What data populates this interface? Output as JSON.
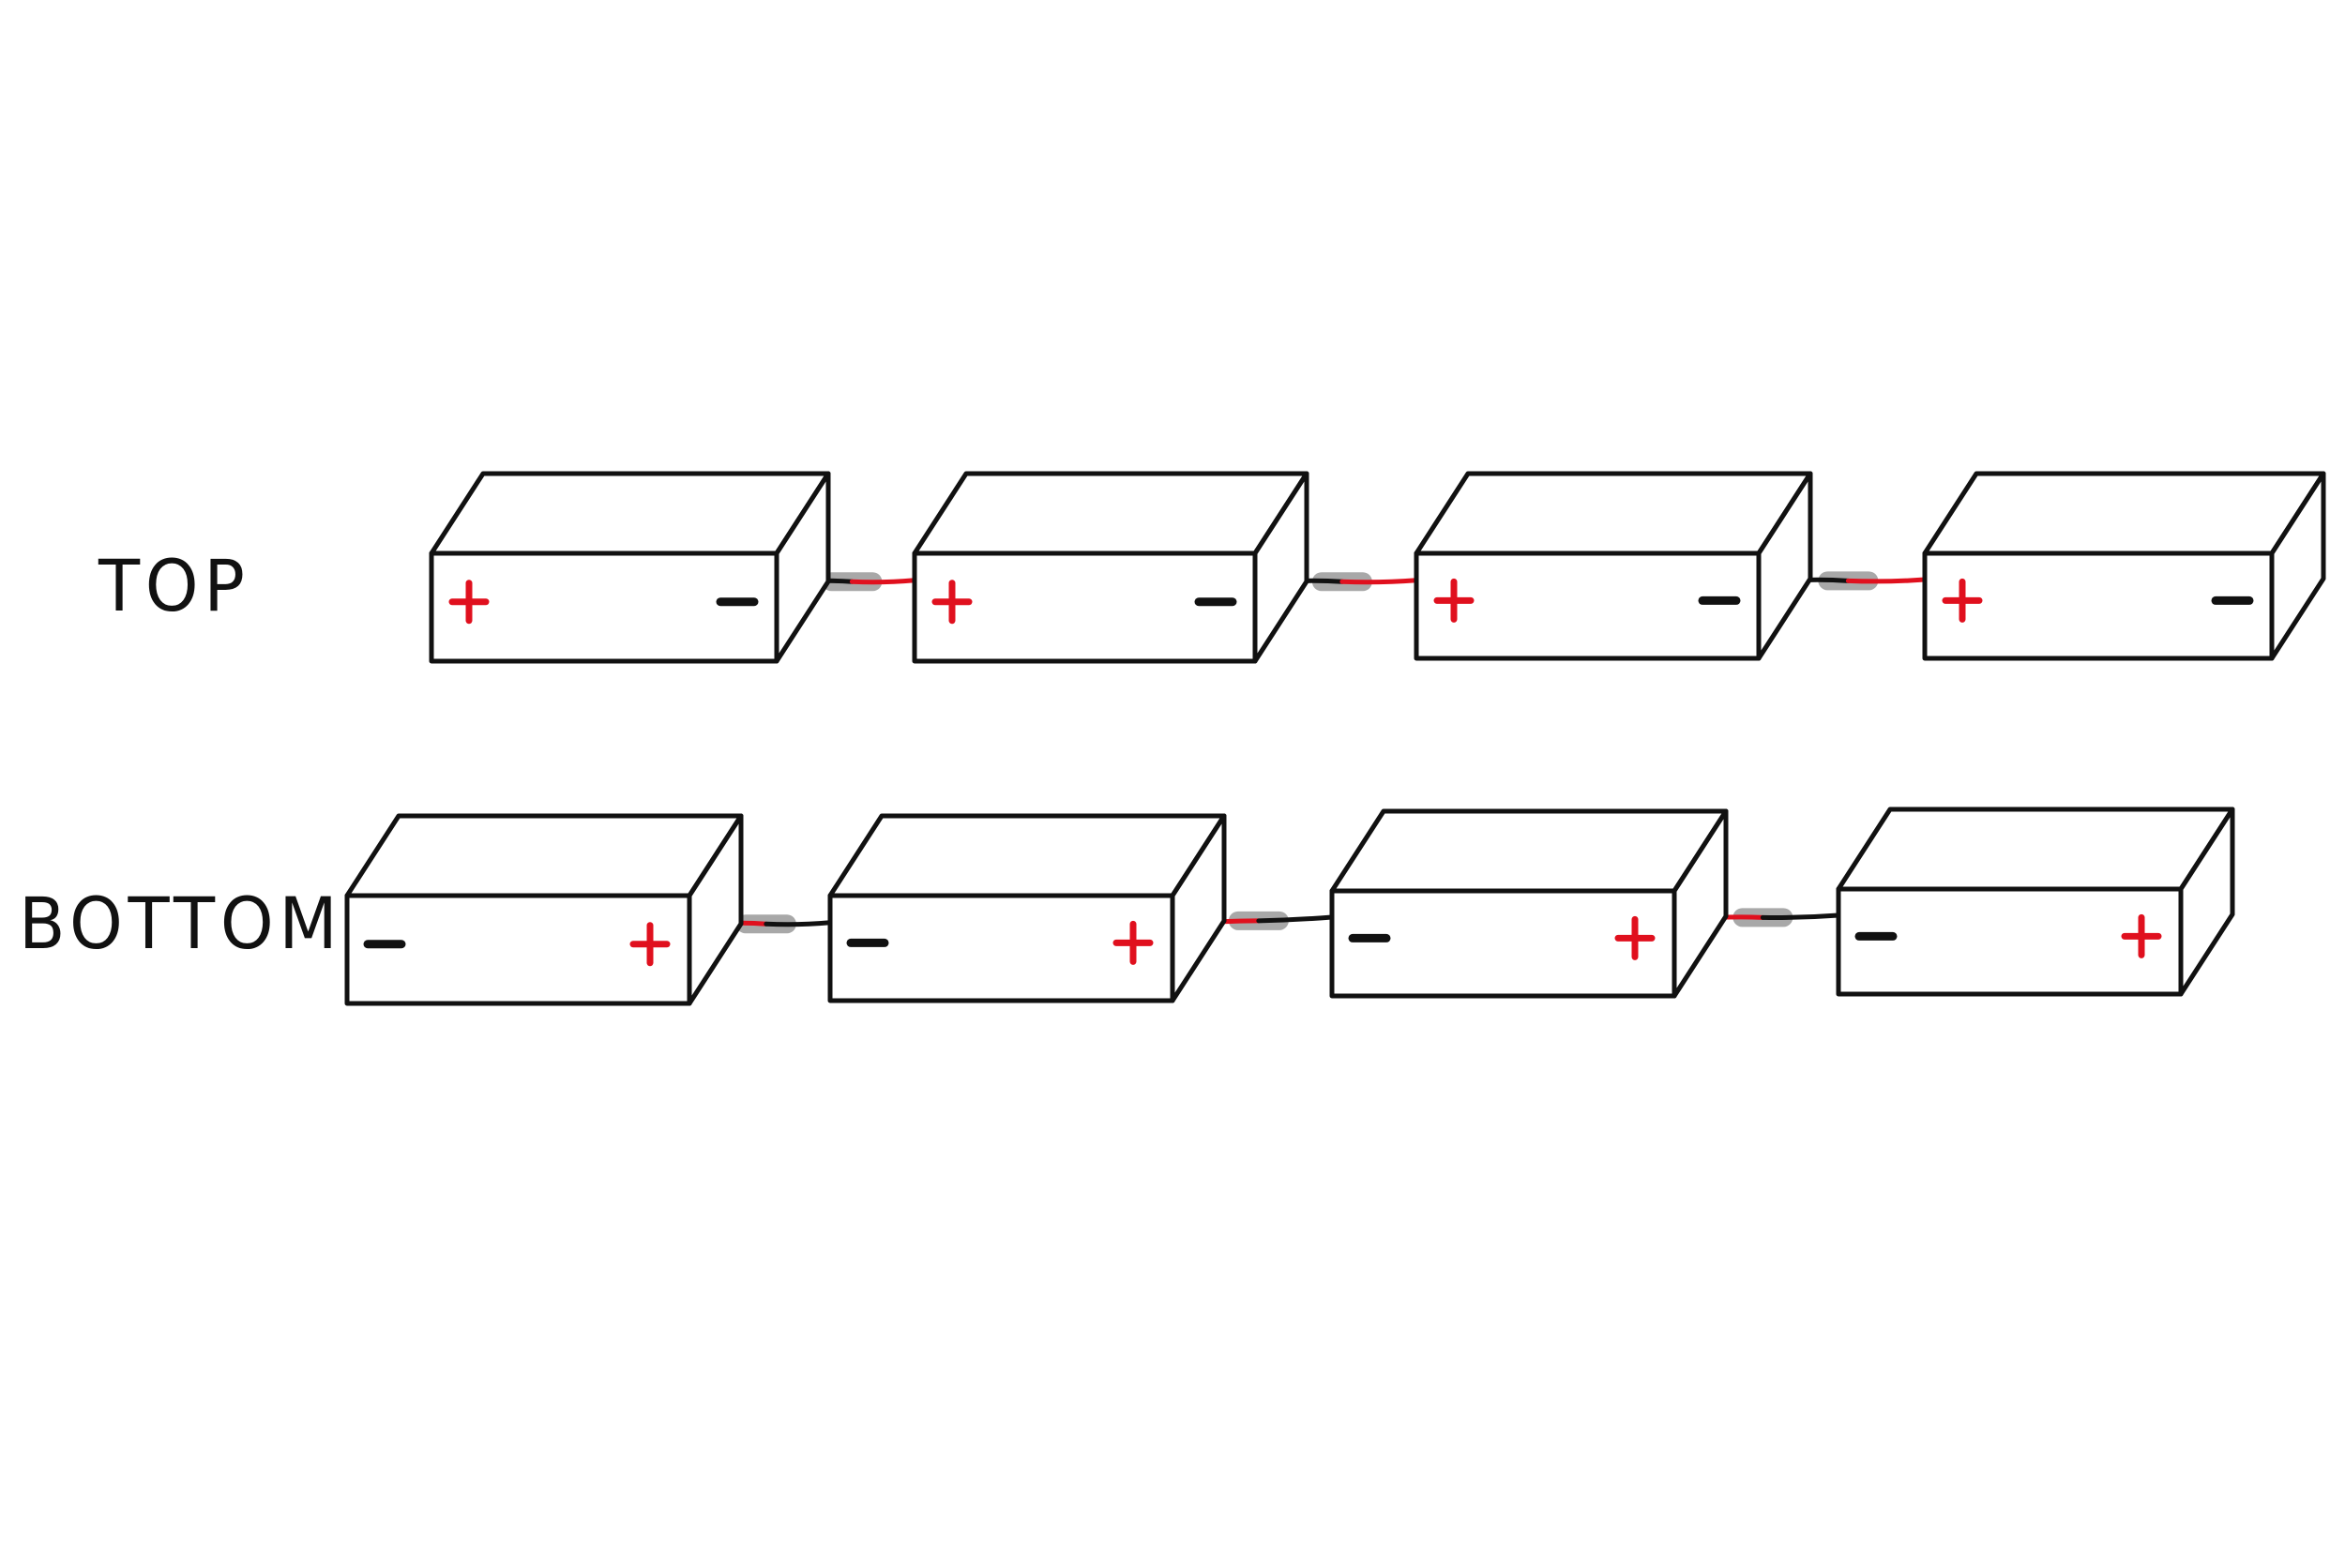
{
  "labels": {
    "top": "TOP",
    "bottom": "BOTTOM"
  },
  "symbols": {
    "positive": "+",
    "negative": "−"
  },
  "colors": {
    "outline": "#111111",
    "positive": "#e0101e",
    "negative": "#111111",
    "wire_red": "#e0101e",
    "wire_black": "#111111",
    "shrink_tube": "#a8a8a8",
    "background": "#ffffff"
  },
  "rows": [
    {
      "name": "top",
      "batteries": [
        {
          "left_terminal": "+",
          "right_terminal": "−"
        },
        {
          "left_terminal": "+",
          "right_terminal": "−"
        },
        {
          "left_terminal": "+",
          "right_terminal": "−"
        },
        {
          "left_terminal": "+",
          "right_terminal": "−"
        }
      ],
      "connections": [
        {
          "from_terminal": "−",
          "to_terminal": "+"
        },
        {
          "from_terminal": "−",
          "to_terminal": "+"
        },
        {
          "from_terminal": "−",
          "to_terminal": "+"
        }
      ]
    },
    {
      "name": "bottom",
      "batteries": [
        {
          "left_terminal": "−",
          "right_terminal": "+"
        },
        {
          "left_terminal": "−",
          "right_terminal": "+"
        },
        {
          "left_terminal": "−",
          "right_terminal": "+"
        },
        {
          "left_terminal": "−",
          "right_terminal": "+"
        }
      ],
      "connections": [
        {
          "from_terminal": "+",
          "to_terminal": "−"
        },
        {
          "from_terminal": "+",
          "to_terminal": "−"
        },
        {
          "from_terminal": "+",
          "to_terminal": "−"
        }
      ]
    }
  ]
}
